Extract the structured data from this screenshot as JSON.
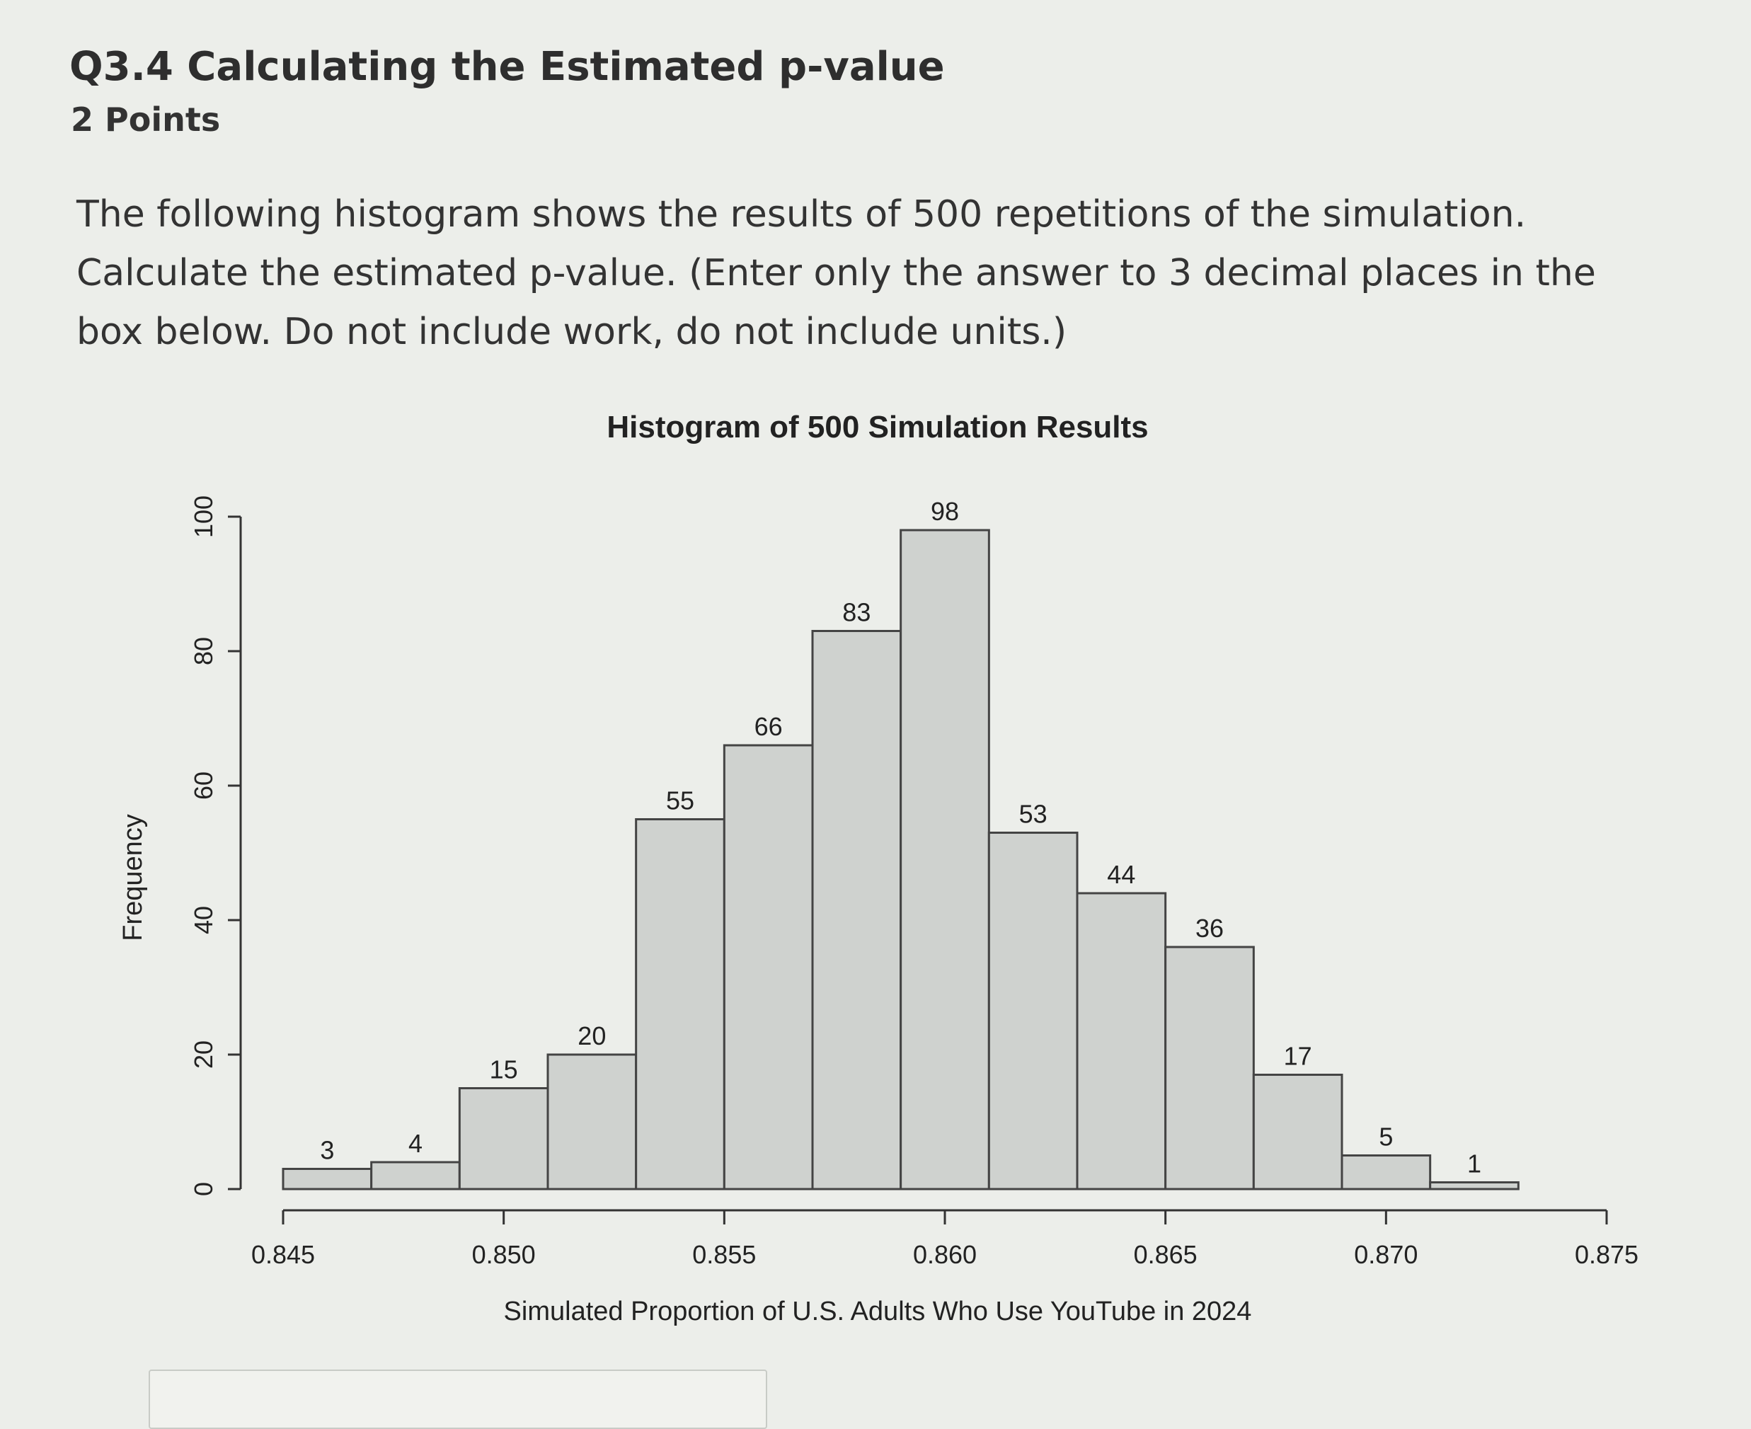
{
  "question": {
    "title": "Q3.4 Calculating the Estimated p-value",
    "points": "2 Points",
    "prompt": "The following histogram shows the results of 500 repetitions of the simulation. Calculate the estimated p-value. (Enter only the answer to 3 decimal places in the box below. Do not include work, do not include units.)"
  },
  "chart_data": {
    "type": "bar",
    "title": "Histogram of 500 Simulation Results",
    "xlabel": "Simulated Proportion of U.S. Adults Who Use YouTube in 2024",
    "ylabel": "Frequency",
    "bins": [
      [
        0.845,
        0.847
      ],
      [
        0.847,
        0.849
      ],
      [
        0.849,
        0.851
      ],
      [
        0.851,
        0.853
      ],
      [
        0.853,
        0.855
      ],
      [
        0.855,
        0.857
      ],
      [
        0.857,
        0.859
      ],
      [
        0.859,
        0.861
      ],
      [
        0.861,
        0.863
      ],
      [
        0.863,
        0.865
      ],
      [
        0.865,
        0.867
      ],
      [
        0.867,
        0.869
      ],
      [
        0.869,
        0.871
      ],
      [
        0.871,
        0.873
      ]
    ],
    "values": [
      3,
      4,
      15,
      20,
      55,
      66,
      83,
      98,
      53,
      44,
      36,
      17,
      5,
      1
    ],
    "data_labels": [
      "3",
      "4",
      "15",
      "20",
      "55",
      "66",
      "83",
      "98",
      "53",
      "44",
      "36",
      "17",
      "5",
      "1"
    ],
    "xlim": [
      0.845,
      0.875
    ],
    "ylim": [
      0,
      100
    ],
    "x_ticks": [
      "0.845",
      "0.850",
      "0.855",
      "0.860",
      "0.865",
      "0.870",
      "0.875"
    ],
    "y_ticks": [
      "0",
      "20",
      "40",
      "60",
      "80",
      "100"
    ],
    "bar_color": "#cfd2cf",
    "edge_color": "#444444"
  }
}
